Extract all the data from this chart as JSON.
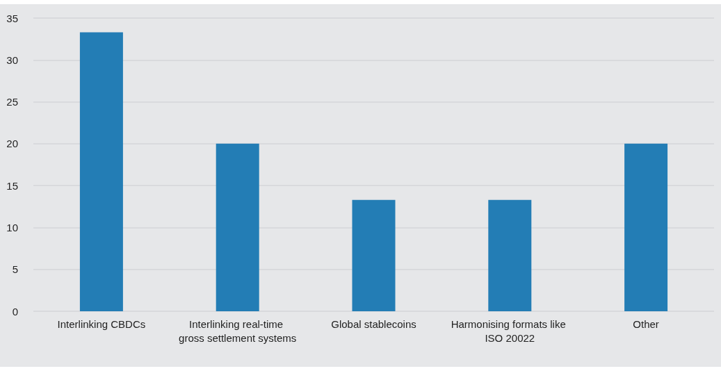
{
  "chart_data": {
    "type": "bar",
    "categories": [
      "Interlinking CBDCs",
      "Interlinking real-time gross settlement systems",
      "Global stablecoins",
      "Harmonising formats like ISO 20022",
      "Other"
    ],
    "values": [
      33.3,
      20,
      13.3,
      13.3,
      20
    ],
    "color": "#237db5",
    "ylim": [
      0,
      35
    ],
    "yticks": [
      0,
      5,
      10,
      15,
      20,
      25,
      30,
      35
    ],
    "grid": "y"
  }
}
